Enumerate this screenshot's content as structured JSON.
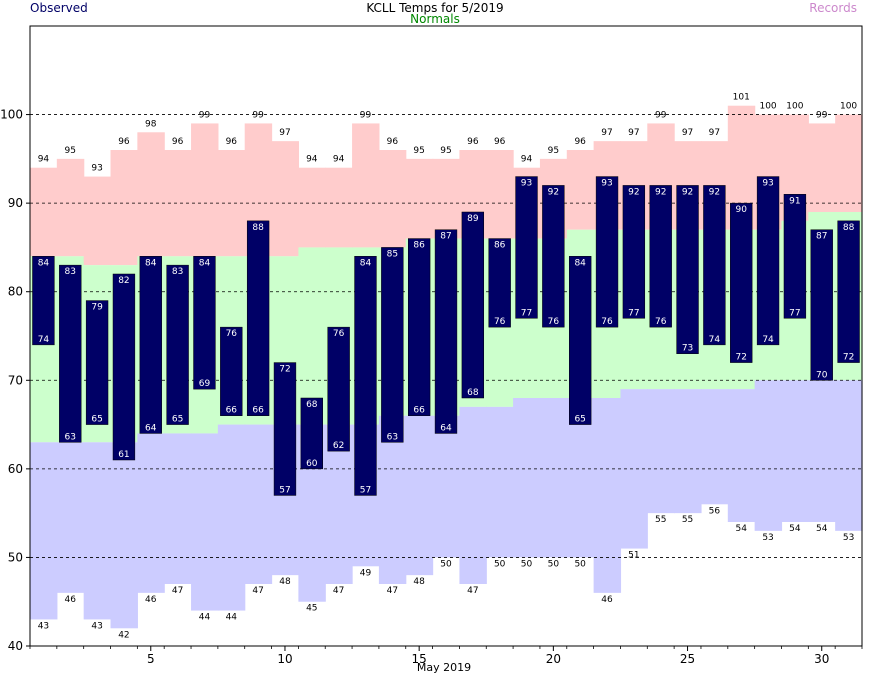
{
  "header": {
    "title": "KCLL Temps for 5/2019",
    "observed_label": "Observed",
    "normals_label": "Normals",
    "records_label": "Records"
  },
  "colors": {
    "observed": "#000066",
    "normals_band": "#ccffcc",
    "records_high": "#ffcccc",
    "records_low": "#ccccff",
    "normals_text": "#008800",
    "records_text": "#cc88cc",
    "observed_text": "#000066"
  },
  "chart_data": {
    "type": "bar",
    "title": "KCLL Temps for 5/2019",
    "xlabel": "May 2019",
    "ylabel": "",
    "ylim": [
      40,
      110
    ],
    "yticks": [
      40,
      50,
      60,
      70,
      80,
      90,
      100
    ],
    "xticks": [
      5,
      10,
      15,
      20,
      25,
      30
    ],
    "grid": "dashed at 50, 60, 70, 80, 90, 100",
    "legend": "top: Observed (left), Normals (center), Records (right)",
    "days": [
      1,
      2,
      3,
      4,
      5,
      6,
      7,
      8,
      9,
      10,
      11,
      12,
      13,
      14,
      15,
      16,
      17,
      18,
      19,
      20,
      21,
      22,
      23,
      24,
      25,
      26,
      27,
      28,
      29,
      30,
      31
    ],
    "series": [
      {
        "name": "Observed",
        "high": [
          84,
          83,
          79,
          82,
          84,
          83,
          84,
          76,
          88,
          72,
          68,
          76,
          84,
          85,
          86,
          87,
          89,
          86,
          93,
          92,
          84,
          93,
          92,
          92,
          92,
          92,
          90,
          93,
          91,
          87,
          88
        ],
        "low": [
          74,
          63,
          65,
          61,
          64,
          65,
          69,
          66,
          66,
          57,
          60,
          62,
          57,
          63,
          66,
          64,
          68,
          76,
          77,
          76,
          65,
          76,
          77,
          76,
          73,
          74,
          72,
          74,
          77,
          70,
          72
        ]
      },
      {
        "name": "Normals",
        "high": [
          84,
          84,
          83,
          83,
          84,
          84,
          84,
          84,
          84,
          84,
          85,
          85,
          85,
          85,
          86,
          86,
          86,
          86,
          86,
          86,
          87,
          87,
          87,
          87,
          87,
          87,
          87,
          87,
          88,
          89,
          89
        ],
        "low": [
          63,
          63,
          63,
          63,
          64,
          64,
          64,
          65,
          65,
          65,
          65,
          65,
          65,
          66,
          66,
          66,
          67,
          67,
          68,
          68,
          68,
          68,
          69,
          69,
          69,
          69,
          69,
          70,
          70,
          70,
          70
        ]
      },
      {
        "name": "Records",
        "high": [
          94,
          95,
          93,
          96,
          98,
          96,
          99,
          96,
          99,
          97,
          94,
          94,
          99,
          96,
          95,
          95,
          96,
          96,
          94,
          95,
          96,
          97,
          97,
          99,
          97,
          97,
          101,
          100,
          100,
          99,
          100
        ],
        "low": [
          43,
          46,
          43,
          42,
          46,
          47,
          44,
          44,
          47,
          48,
          45,
          47,
          49,
          47,
          48,
          50,
          47,
          50,
          50,
          50,
          50,
          46,
          51,
          55,
          55,
          56,
          54,
          53,
          54,
          54,
          53
        ]
      }
    ]
  }
}
